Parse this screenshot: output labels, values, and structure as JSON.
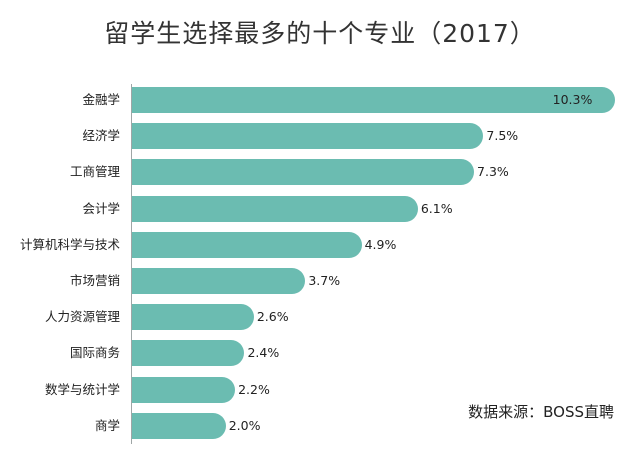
{
  "title": "留学生选择最多的十个专业（2017）",
  "source_note": "数据来源：BOSS直聘",
  "colors": {
    "bar": "#6bbcb1",
    "axis": "#9fa6a6",
    "text": "#222222"
  },
  "chart_data": {
    "type": "bar",
    "orientation": "horizontal",
    "title": "留学生选择最多的十个专业（2017）",
    "categories": [
      "金融学",
      "经济学",
      "工商管理",
      "会计学",
      "计算机科学与技术",
      "市场营销",
      "人力资源管理",
      "国际商务",
      "数学与统计学",
      "商学"
    ],
    "values": [
      10.3,
      7.5,
      7.3,
      6.1,
      4.9,
      3.7,
      2.6,
      2.4,
      2.2,
      2.0
    ],
    "value_labels": [
      "10.3%",
      "7.5%",
      "7.3%",
      "6.1%",
      "4.9%",
      "3.7%",
      "2.6%",
      "2.4%",
      "2.2%",
      "2.0%"
    ],
    "xlim": [
      0,
      10.5
    ],
    "grid": false,
    "legend": "none"
  }
}
